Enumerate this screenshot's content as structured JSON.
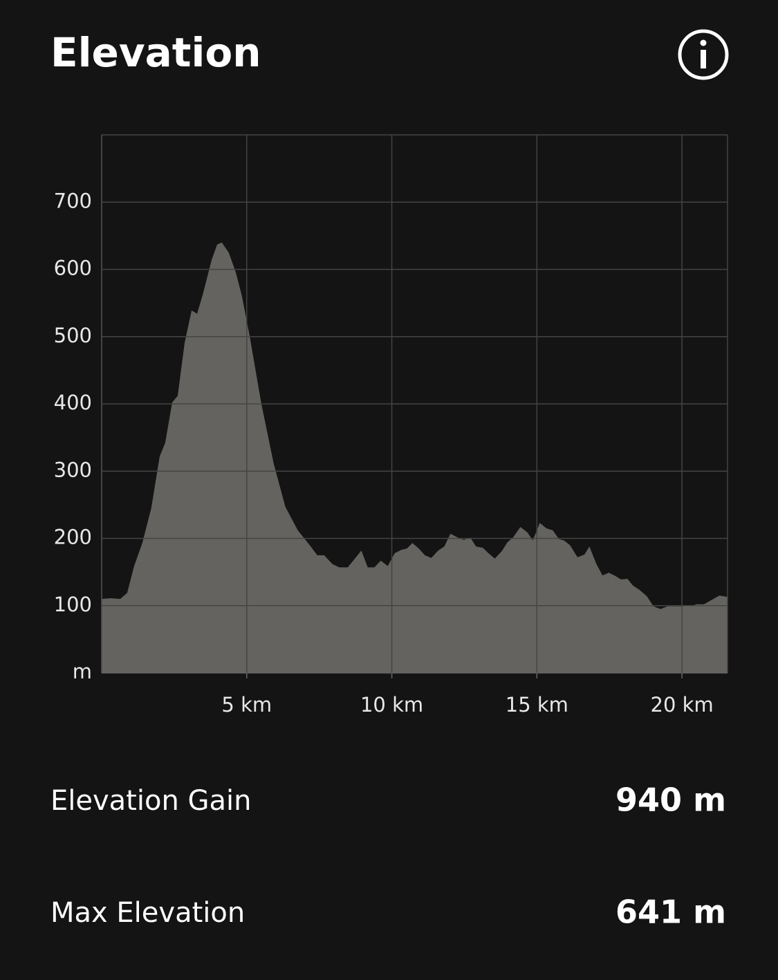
{
  "chart_data": {
    "type": "area",
    "title": "Elevation",
    "color": "#64635f",
    "grid": true,
    "x": [
      0,
      0.33,
      0.64,
      0.88,
      1.12,
      1.4,
      1.71,
      2.0,
      2.19,
      2.43,
      2.62,
      2.86,
      3.1,
      3.29,
      3.5,
      3.79,
      3.98,
      4.14,
      4.38,
      4.62,
      4.83,
      5.1,
      5.5,
      5.93,
      6.33,
      6.76,
      7.17,
      7.43,
      7.67,
      7.95,
      8.19,
      8.48,
      8.67,
      8.95,
      9.17,
      9.4,
      9.62,
      9.86,
      10.1,
      10.33,
      10.52,
      10.71,
      10.93,
      11.14,
      11.36,
      11.6,
      11.81,
      12.02,
      12.29,
      12.48,
      12.71,
      12.9,
      13.14,
      13.33,
      13.55,
      13.79,
      13.98,
      14.19,
      14.43,
      14.67,
      14.86,
      15.1,
      15.33,
      15.55,
      15.76,
      15.93,
      16.14,
      16.4,
      16.64,
      16.81,
      17.05,
      17.26,
      17.48,
      17.71,
      17.9,
      18.12,
      18.31,
      18.55,
      18.79,
      19.02,
      19.26,
      19.5,
      19.98,
      20.33,
      20.52,
      20.76,
      21.0,
      21.29,
      21.57
    ],
    "values": [
      110,
      111,
      110,
      119,
      159,
      193,
      245,
      322,
      342,
      402,
      412,
      491,
      539,
      534,
      565,
      614,
      637,
      640,
      625,
      596,
      561,
      501,
      401,
      311,
      247,
      212,
      190,
      175,
      175,
      162,
      157,
      157,
      167,
      182,
      157,
      157,
      167,
      159,
      178,
      183,
      185,
      193,
      185,
      175,
      171,
      182,
      188,
      207,
      201,
      198,
      201,
      188,
      186,
      178,
      170,
      181,
      194,
      202,
      217,
      209,
      197,
      223,
      215,
      212,
      199,
      197,
      190,
      172,
      176,
      188,
      162,
      145,
      149,
      144,
      139,
      140,
      130,
      123,
      114,
      99,
      95,
      99,
      99,
      100,
      102,
      102,
      108,
      115,
      113
    ],
    "xlim": [
      0,
      21.57
    ],
    "xticks": [
      {
        "value": 5,
        "label": "5 km"
      },
      {
        "value": 10,
        "label": "10 km"
      },
      {
        "value": 15,
        "label": "15 km"
      },
      {
        "value": 20,
        "label": "20 km"
      }
    ],
    "ylim": [
      0,
      800
    ],
    "yticks": [
      {
        "value": 0,
        "label": "m"
      },
      100,
      200,
      300,
      400,
      500,
      600,
      700
    ]
  },
  "stats": [
    {
      "label": "Elevation Gain",
      "value": "940 m"
    },
    {
      "label": "Max Elevation",
      "value": "641 m"
    }
  ]
}
